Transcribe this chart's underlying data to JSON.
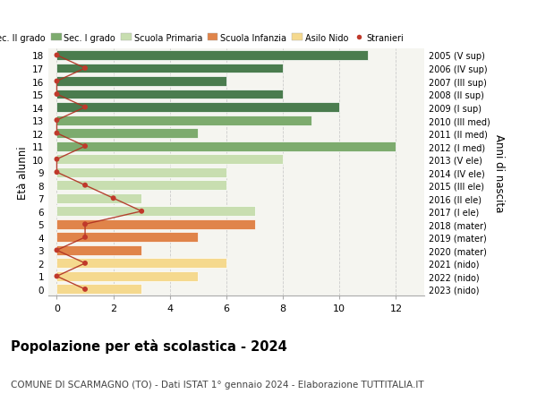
{
  "ages": [
    18,
    17,
    16,
    15,
    14,
    13,
    12,
    11,
    10,
    9,
    8,
    7,
    6,
    5,
    4,
    3,
    2,
    1,
    0
  ],
  "right_labels": [
    "2005 (V sup)",
    "2006 (IV sup)",
    "2007 (III sup)",
    "2008 (II sup)",
    "2009 (I sup)",
    "2010 (III med)",
    "2011 (II med)",
    "2012 (I med)",
    "2013 (V ele)",
    "2014 (IV ele)",
    "2015 (III ele)",
    "2016 (II ele)",
    "2017 (I ele)",
    "2018 (mater)",
    "2019 (mater)",
    "2020 (mater)",
    "2021 (nido)",
    "2022 (nido)",
    "2023 (nido)"
  ],
  "bar_values": [
    11,
    8,
    6,
    8,
    10,
    9,
    5,
    12,
    8,
    6,
    6,
    3,
    7,
    7,
    5,
    3,
    6,
    5,
    3
  ],
  "bar_colors": [
    "#4a7c4e",
    "#4a7c4e",
    "#4a7c4e",
    "#4a7c4e",
    "#4a7c4e",
    "#7dab6e",
    "#7dab6e",
    "#7dab6e",
    "#c8deb0",
    "#c8deb0",
    "#c8deb0",
    "#c8deb0",
    "#c8deb0",
    "#e0844a",
    "#e0844a",
    "#e0844a",
    "#f5d98e",
    "#f5d98e",
    "#f5d98e"
  ],
  "stranieri_values": [
    0,
    1,
    0,
    0,
    1,
    0,
    0,
    1,
    0,
    0,
    1,
    2,
    3,
    1,
    1,
    0,
    1,
    0,
    1
  ],
  "legend_labels": [
    "Sec. II grado",
    "Sec. I grado",
    "Scuola Primaria",
    "Scuola Infanzia",
    "Asilo Nido",
    "Stranieri"
  ],
  "legend_colors": [
    "#4a7c4e",
    "#7dab6e",
    "#c8deb0",
    "#e0844a",
    "#f5d98e",
    "#c0392b"
  ],
  "ylabel_left": "Età alunni",
  "ylabel_right": "Anni di nascita",
  "title": "Popolazione per età scolastica - 2024",
  "subtitle": "COMUNE DI SCARMAGNO (TO) - Dati ISTAT 1° gennaio 2024 - Elaborazione TUTTITALIA.IT",
  "stranieri_color": "#c0392b",
  "stranieri_line_color": "#b03020",
  "grid_color": "#cccccc",
  "bg_color": "#ffffff",
  "plot_bg_color": "#f5f5f0",
  "bar_height": 0.75
}
